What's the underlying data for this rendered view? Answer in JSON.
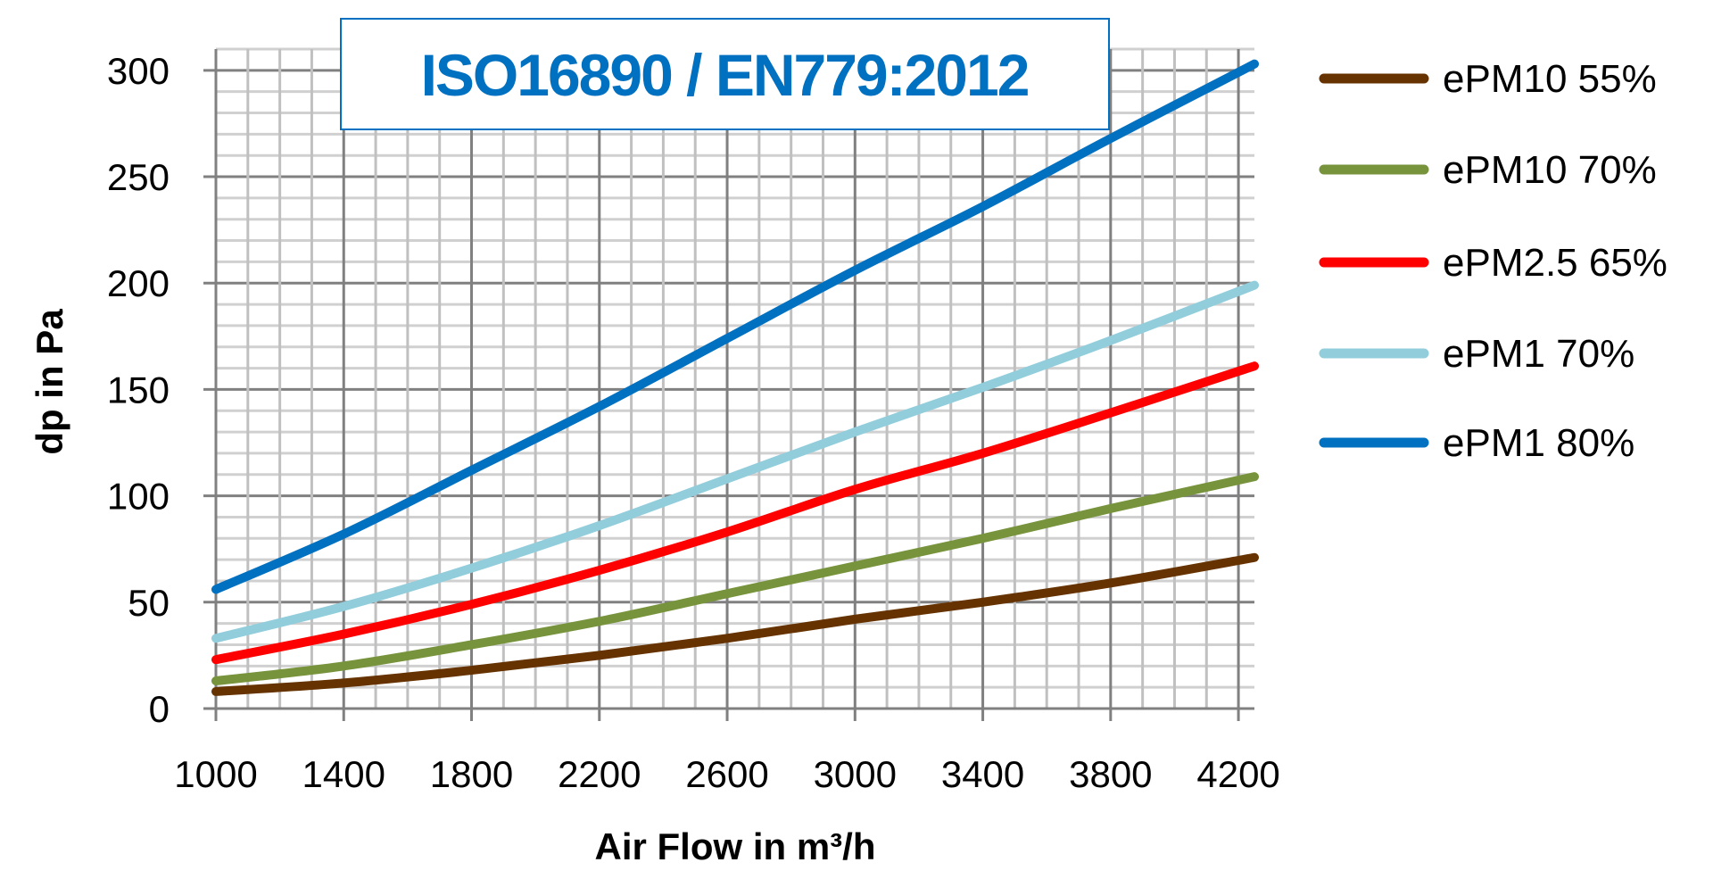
{
  "chart_data": {
    "type": "line",
    "title": "ISO16890 / EN779:2012",
    "xlabel": "Air Flow in m³/h",
    "ylabel": "dp in Pa",
    "xlim": [
      1000,
      4250
    ],
    "ylim": [
      0,
      310
    ],
    "grid": true,
    "legend_position": "right",
    "x_ticks": [
      1000,
      1400,
      1800,
      2200,
      2600,
      3000,
      3400,
      3800,
      4200
    ],
    "y_ticks": [
      0,
      50,
      100,
      150,
      200,
      250,
      300
    ],
    "x": [
      1000,
      1400,
      1800,
      2200,
      2600,
      3000,
      3400,
      3800,
      4250
    ],
    "series": [
      {
        "name": "ePM10 55%",
        "color": "#663300",
        "values": [
          8,
          12,
          18,
          25,
          33,
          42,
          50,
          59,
          71
        ]
      },
      {
        "name": "ePM10 70%",
        "color": "#77933C",
        "values": [
          13,
          20,
          30,
          41,
          54,
          67,
          80,
          94,
          109
        ]
      },
      {
        "name": "ePM2.5 65%",
        "color": "#FF0000",
        "values": [
          23,
          35,
          49,
          65,
          83,
          103,
          120,
          139,
          161
        ]
      },
      {
        "name": "ePM1 70%",
        "color": "#92CDDC",
        "values": [
          33,
          48,
          66,
          86,
          108,
          130,
          151,
          173,
          199
        ]
      },
      {
        "name": "ePM1 80%",
        "color": "#0070C0",
        "values": [
          56,
          82,
          112,
          142,
          174,
          206,
          236,
          268,
          303
        ]
      }
    ],
    "colors": {
      "title": "#0070C0",
      "grid_major": "#808080",
      "grid_minor": "#C0C0C0"
    }
  }
}
